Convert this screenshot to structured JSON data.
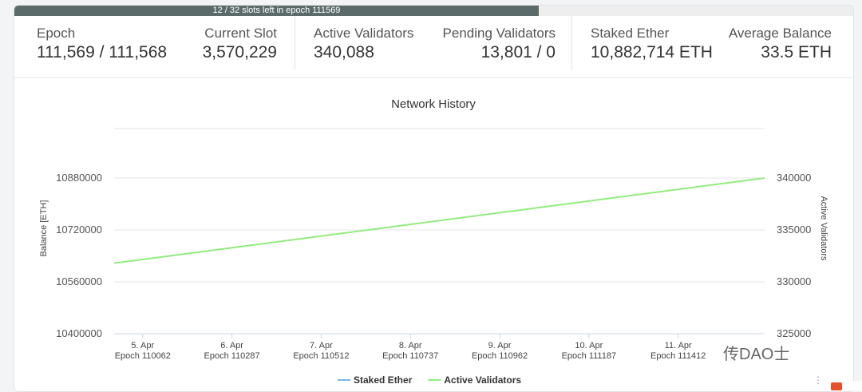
{
  "progress": {
    "label": "12 / 32 slots left in epoch 111569",
    "fraction": 0.625
  },
  "stats": {
    "epoch": {
      "label": "Epoch",
      "value": "111,569 / 111,568"
    },
    "current_slot": {
      "label": "Current Slot",
      "value": "3,570,229"
    },
    "active_validators": {
      "label": "Active Validators",
      "value": "340,088"
    },
    "pending_validators": {
      "label": "Pending Validators",
      "value": "13,801 / 0"
    },
    "staked_ether": {
      "label": "Staked Ether",
      "value": "10,882,714 ETH"
    },
    "average_balance": {
      "label": "Average Balance",
      "value": "33.5 ETH"
    }
  },
  "chart_data": {
    "type": "line",
    "title": "Network History",
    "x_tick_dates": [
      "5. Apr",
      "6. Apr",
      "7. Apr",
      "8. Apr",
      "9. Apr",
      "10. Apr",
      "11. Apr"
    ],
    "x_tick_epochs": [
      "Epoch 110062",
      "Epoch 110287",
      "Epoch 110512",
      "Epoch 110737",
      "Epoch 110962",
      "Epoch 111187",
      "Epoch 111412"
    ],
    "x_range_epochs": [
      109990,
      111630
    ],
    "left_axis": {
      "label": "Balance [ETH]",
      "ticks": [
        "10880000",
        "10720000",
        "10560000",
        "10400000"
      ],
      "range": [
        10400000,
        10880000
      ]
    },
    "right_axis": {
      "label": "Active Validators",
      "ticks": [
        "340000",
        "335000",
        "330000",
        "325000"
      ],
      "range": [
        325000,
        340000
      ]
    },
    "grid": true,
    "legend_position": "bottom",
    "series": [
      {
        "name": "Staked Ether",
        "axis": "left",
        "color": "#7cb5ec",
        "x": [],
        "values": []
      },
      {
        "name": "Active Validators",
        "axis": "right",
        "color": "#90ed7d",
        "x": [
          109990,
          111630
        ],
        "values": [
          331800,
          340000
        ]
      }
    ]
  },
  "watermark": {
    "text": "传DAO士"
  },
  "colors": {
    "progress_fill": "#5b6b6a",
    "active_validators": "#90ed7d",
    "staked_ether": "#7cb5ec"
  }
}
